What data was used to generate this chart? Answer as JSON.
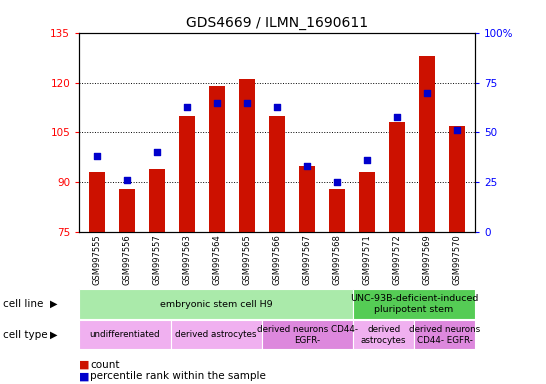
{
  "title": "GDS4669 / ILMN_1690611",
  "samples": [
    "GSM997555",
    "GSM997556",
    "GSM997557",
    "GSM997563",
    "GSM997564",
    "GSM997565",
    "GSM997566",
    "GSM997567",
    "GSM997568",
    "GSM997571",
    "GSM997572",
    "GSM997569",
    "GSM997570"
  ],
  "counts": [
    93,
    88,
    94,
    110,
    119,
    121,
    110,
    95,
    88,
    93,
    108,
    128,
    107
  ],
  "percentiles": [
    38,
    26,
    40,
    63,
    65,
    65,
    63,
    33,
    25,
    36,
    58,
    70,
    51
  ],
  "ymin": 75,
  "ymax": 135,
  "yticks_left": [
    75,
    90,
    105,
    120,
    135
  ],
  "yticks_right": [
    0,
    25,
    50,
    75,
    100
  ],
  "bar_color": "#cc1100",
  "dot_color": "#0000cc",
  "cell_line_groups": [
    {
      "label": "embryonic stem cell H9",
      "start": 0,
      "end": 9,
      "color": "#aaeaaa"
    },
    {
      "label": "UNC-93B-deficient-induced\npluripotent stem",
      "start": 9,
      "end": 13,
      "color": "#55cc55"
    }
  ],
  "cell_type_groups": [
    {
      "label": "undifferentiated",
      "start": 0,
      "end": 3,
      "color": "#f0b0f0"
    },
    {
      "label": "derived astrocytes",
      "start": 3,
      "end": 6,
      "color": "#f0b0f0"
    },
    {
      "label": "derived neurons CD44-\nEGFR-",
      "start": 6,
      "end": 9,
      "color": "#dd88dd"
    },
    {
      "label": "derived\nastrocytes",
      "start": 9,
      "end": 11,
      "color": "#f0b0f0"
    },
    {
      "label": "derived neurons\nCD44- EGFR-",
      "start": 11,
      "end": 13,
      "color": "#dd88dd"
    }
  ],
  "legend_count_color": "#cc1100",
  "legend_percentile_color": "#0000cc"
}
